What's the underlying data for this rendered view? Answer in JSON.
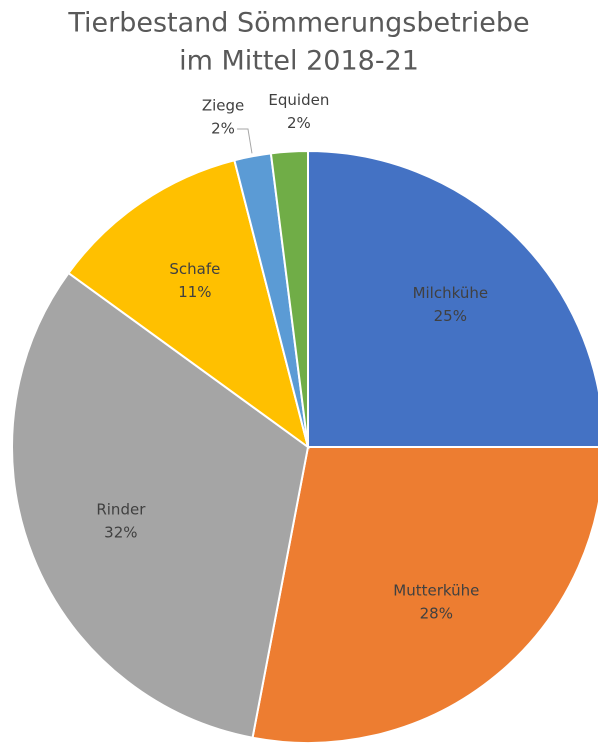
{
  "chart_data": {
    "type": "pie",
    "title": [
      "Tierbestand Sömmerungsbetriebe",
      "im Mittel 2018-21"
    ],
    "categories": [
      "Milchkühe",
      "Mutterkühe",
      "Rinder",
      "Schafe",
      "Ziege",
      "Equiden"
    ],
    "values": [
      25,
      28,
      32,
      11,
      2,
      2
    ],
    "value_labels": [
      "25%",
      "28%",
      "32%",
      "11%",
      "2%",
      "2%"
    ],
    "colors": [
      "#4472c4",
      "#ed7d31",
      "#a5a5a5",
      "#ffc000",
      "#5b9bd5",
      "#70ad47"
    ]
  }
}
